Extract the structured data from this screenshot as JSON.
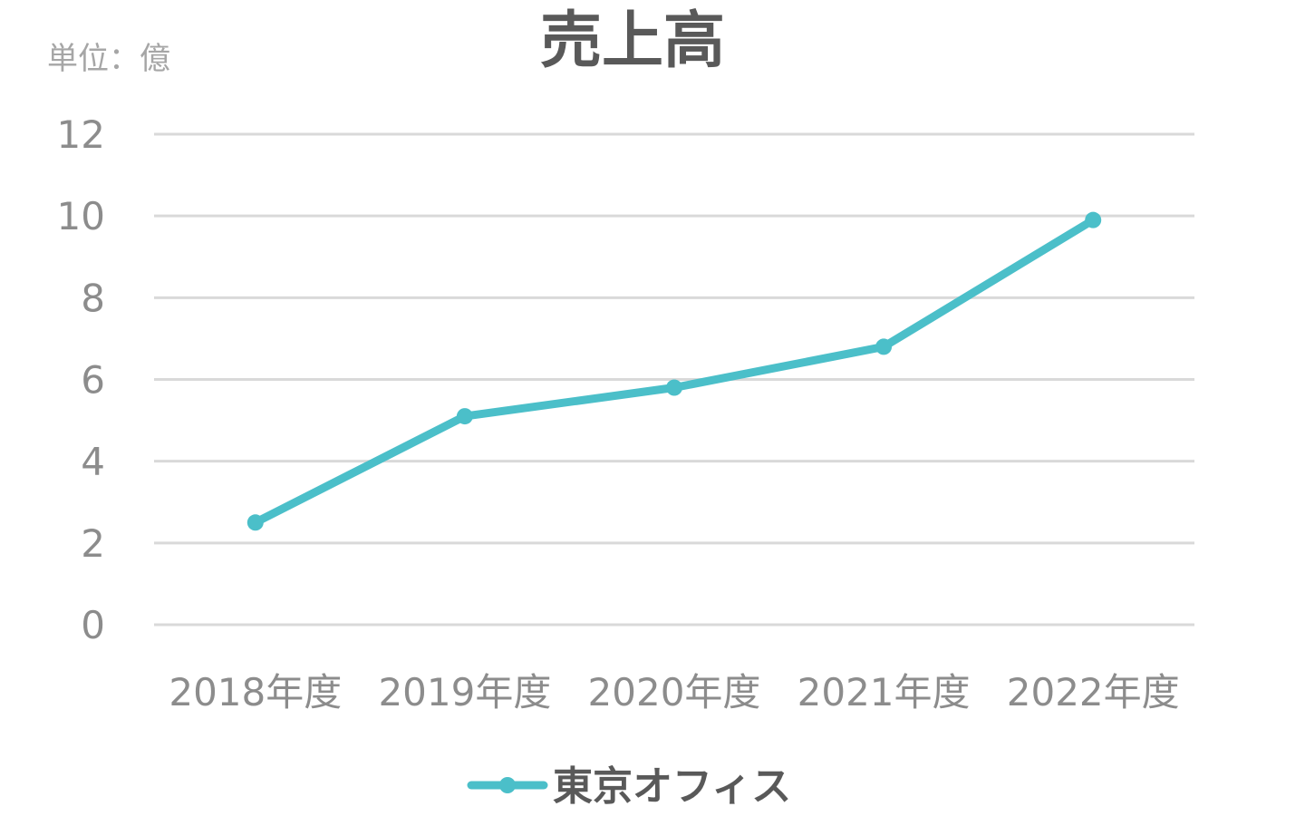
{
  "chart_data": {
    "type": "line",
    "title": "売上高",
    "unit_label": "単位：億",
    "categories": [
      "2018年度",
      "2019年度",
      "2020年度",
      "2021年度",
      "2022年度"
    ],
    "series": [
      {
        "name": "東京オフィス",
        "values": [
          2.5,
          5.1,
          5.8,
          6.8,
          9.9
        ],
        "color": "#4bbfc9"
      }
    ],
    "yticks": [
      "0",
      "2",
      "4",
      "6",
      "8",
      "10",
      "12"
    ],
    "ylim": [
      0,
      12
    ],
    "grid": true,
    "legend_position": "bottom"
  }
}
